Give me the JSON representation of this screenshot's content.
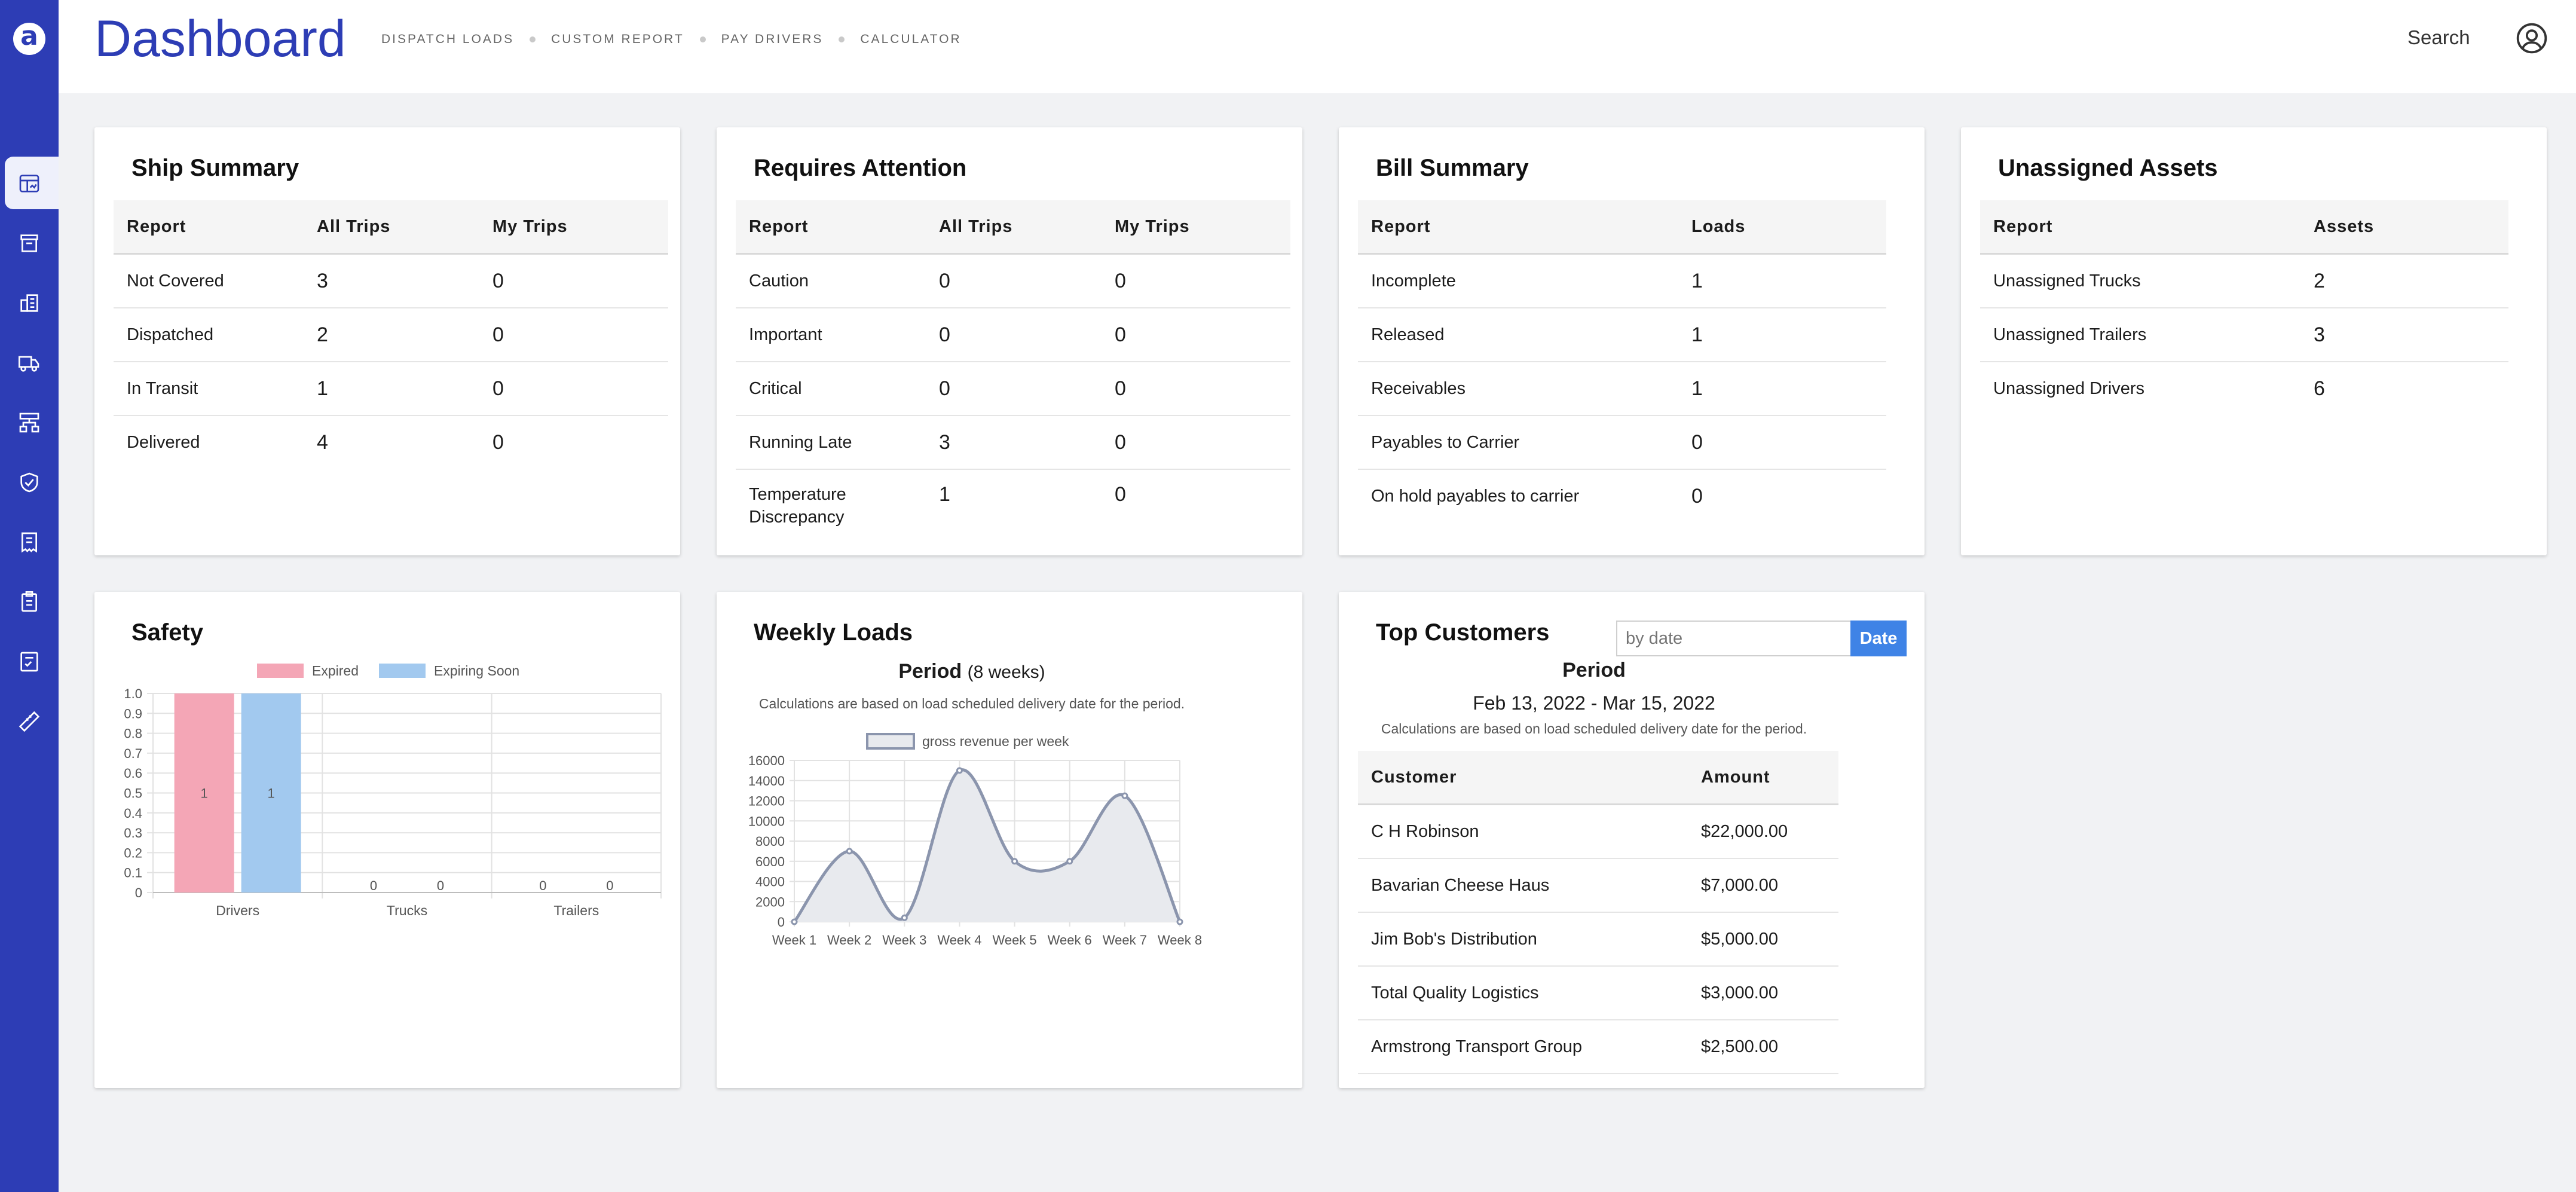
{
  "app": {
    "logo_letter": "a",
    "title": "Dashboard"
  },
  "nav": [
    {
      "label": "DISPATCH LOADS"
    },
    {
      "label": "CUSTOM REPORT"
    },
    {
      "label": "PAY DRIVERS"
    },
    {
      "label": "CALCULATOR"
    }
  ],
  "header": {
    "search_label": "Search"
  },
  "sidebar": {
    "icons": [
      "dashboard-icon",
      "store-icon",
      "building-icon",
      "truck-icon",
      "network-icon",
      "shield-check-icon",
      "receipt-icon",
      "clipboard-icon",
      "checklist-icon",
      "ruler-icon"
    ]
  },
  "ship_summary": {
    "title": "Ship Summary",
    "columns": [
      "Report",
      "All Trips",
      "My Trips"
    ],
    "rows": [
      {
        "report": "Not Covered",
        "all": "3",
        "mine": "0"
      },
      {
        "report": "Dispatched",
        "all": "2",
        "mine": "0"
      },
      {
        "report": "In Transit",
        "all": "1",
        "mine": "0"
      },
      {
        "report": "Delivered",
        "all": "4",
        "mine": "0"
      }
    ]
  },
  "requires_attention": {
    "title": "Requires Attention",
    "columns": [
      "Report",
      "All Trips",
      "My Trips"
    ],
    "rows": [
      {
        "report": "Caution",
        "all": "0",
        "mine": "0"
      },
      {
        "report": "Important",
        "all": "0",
        "mine": "0"
      },
      {
        "report": "Critical",
        "all": "0",
        "mine": "0"
      },
      {
        "report": "Running Late",
        "all": "3",
        "mine": "0"
      },
      {
        "report": "Temperature Discrepancy",
        "all": "1",
        "mine": "0"
      }
    ]
  },
  "bill_summary": {
    "title": "Bill Summary",
    "columns": [
      "Report",
      "Loads"
    ],
    "rows": [
      {
        "report": "Incomplete",
        "loads": "1"
      },
      {
        "report": "Released",
        "loads": "1"
      },
      {
        "report": "Receivables",
        "loads": "1"
      },
      {
        "report": "Payables to Carrier",
        "loads": "0"
      },
      {
        "report": "On hold payables to carrier",
        "loads": "0"
      }
    ]
  },
  "unassigned_assets": {
    "title": "Unassigned Assets",
    "columns": [
      "Report",
      "Assets"
    ],
    "rows": [
      {
        "report": "Unassigned Trucks",
        "assets": "2"
      },
      {
        "report": "Unassigned Trailers",
        "assets": "3"
      },
      {
        "report": "Unassigned Drivers",
        "assets": "6"
      }
    ]
  },
  "safety": {
    "title": "Safety"
  },
  "weekly_loads": {
    "title": "Weekly Loads",
    "period_label": "Period",
    "period_detail": "(8 weeks)",
    "note": "Calculations are based on load scheduled delivery date for the period."
  },
  "top_customers": {
    "title": "Top Customers",
    "date_placeholder": "by date",
    "date_button": "Date",
    "period_label": "Period",
    "date_range": "Feb 13, 2022 - Mar 15, 2022",
    "note": "Calculations are based on load scheduled delivery date for the period.",
    "columns": [
      "Customer",
      "Amount"
    ],
    "rows": [
      {
        "customer": "C H Robinson",
        "amount": "$22,000.00"
      },
      {
        "customer": "Bavarian Cheese Haus",
        "amount": "$7,000.00"
      },
      {
        "customer": "Jim Bob's Distribution",
        "amount": "$5,000.00"
      },
      {
        "customer": "Total Quality Logistics",
        "amount": "$3,000.00"
      },
      {
        "customer": "Armstrong Transport Group",
        "amount": "$2,500.00"
      }
    ]
  },
  "chart_data": [
    {
      "type": "bar",
      "categories": [
        "Drivers",
        "Trucks",
        "Trailers"
      ],
      "series": [
        {
          "name": "Expired",
          "values": [
            1,
            0,
            0
          ],
          "color": "#f4a6b6"
        },
        {
          "name": "Expiring Soon",
          "values": [
            1,
            0,
            0
          ],
          "color": "#a2c9ef"
        }
      ],
      "ylim": [
        0,
        1.0
      ],
      "yticks": [
        "1.0",
        "0.9",
        "0.8",
        "0.7",
        "0.6",
        "0.5",
        "0.4",
        "0.3",
        "0.2",
        "0.1",
        "0"
      ],
      "legend": "top",
      "grid": true
    },
    {
      "type": "area",
      "categories": [
        "Week 1",
        "Week 2",
        "Week 3",
        "Week 4",
        "Week 5",
        "Week 6",
        "Week 7",
        "Week 8"
      ],
      "series": [
        {
          "name": "gross revenue per week",
          "values": [
            0,
            7000,
            400,
            15000,
            6000,
            6000,
            12500,
            0
          ],
          "color": "#8b95ad"
        }
      ],
      "ylim": [
        0,
        16000
      ],
      "yticks": [
        "16000",
        "14000",
        "12000",
        "10000",
        "8000",
        "6000",
        "4000",
        "2000",
        "0"
      ],
      "legend": "top",
      "grid": true
    }
  ]
}
